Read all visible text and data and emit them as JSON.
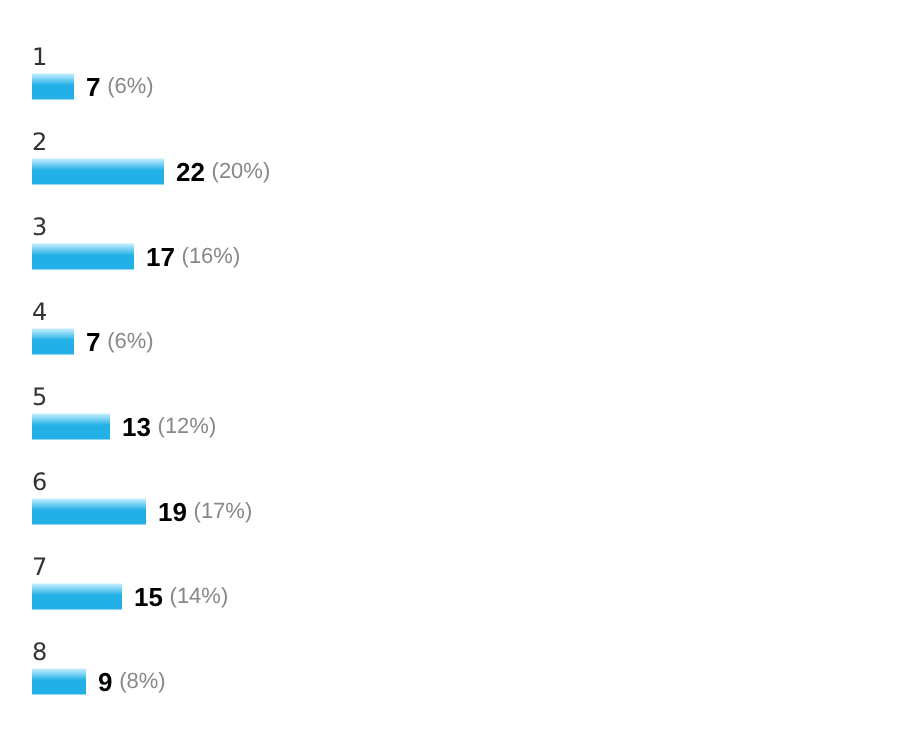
{
  "chart_data": {
    "type": "bar",
    "orientation": "horizontal",
    "categories": [
      "1",
      "2",
      "3",
      "4",
      "5",
      "6",
      "7",
      "8"
    ],
    "values": [
      7,
      22,
      17,
      7,
      13,
      19,
      15,
      9
    ],
    "value_labels": [
      "7 (6%)",
      "22 (20%)",
      "17 (16%)",
      "7 (6%)",
      "13 (12%)",
      "19 (17%)",
      "15 (14%)",
      "9 (8%)"
    ],
    "color": "#22b0e6"
  }
}
